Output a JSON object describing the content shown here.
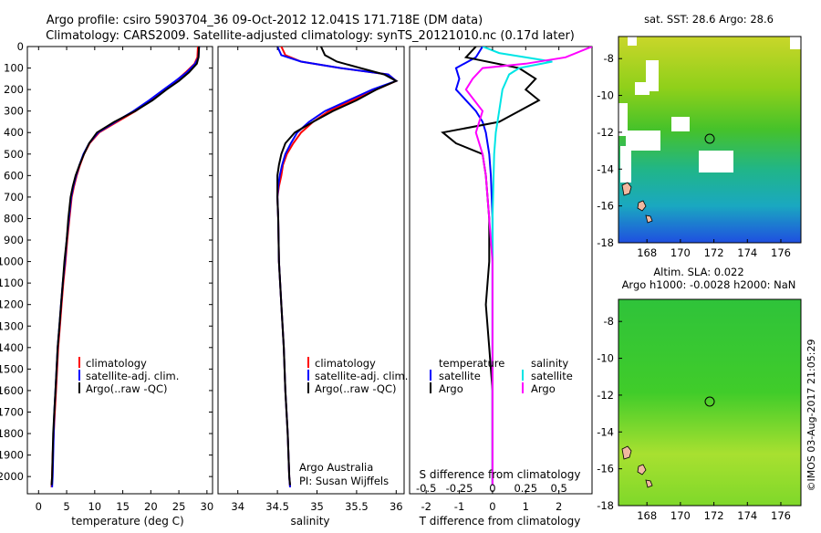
{
  "header": {
    "title_line1": "Argo profile: csiro 5903704_36 09-Oct-2012 12.041S 171.718E (DM data)",
    "title_line2": "Climatology: CARS2009. Satellite-adjusted climatology: synTS_20121010.nc (0.17d later)"
  },
  "colors": {
    "climatology": "#ff0000",
    "satellite": "#0000ff",
    "argo": "#000000",
    "sat_salinity": "#00e5e5",
    "argo_salinity": "#ff00ff"
  },
  "depth_ticks": [
    0,
    100,
    200,
    300,
    400,
    500,
    600,
    700,
    800,
    900,
    1000,
    1100,
    1200,
    1300,
    1400,
    1500,
    1600,
    1700,
    1800,
    1900,
    2000
  ],
  "chart_data": [
    {
      "type": "line",
      "panel": "temperature",
      "xlabel": "temperature (deg C)",
      "ylabel": "",
      "xlim": [
        -2,
        31
      ],
      "ylim": [
        2080,
        0
      ],
      "x_ticks": [
        "0",
        "5",
        "10",
        "15",
        "20",
        "25",
        "30"
      ],
      "legend": [
        "climatology",
        "satellite-adj. clim.",
        "Argo(..raw -QC)"
      ],
      "series": [
        {
          "name": "climatology",
          "color": "#ff0000",
          "points": [
            [
              28.4,
              0
            ],
            [
              28.3,
              50
            ],
            [
              27.8,
              80
            ],
            [
              26.2,
              120
            ],
            [
              24.5,
              160
            ],
            [
              22.5,
              200
            ],
            [
              20,
              250
            ],
            [
              17.3,
              300
            ],
            [
              14,
              350
            ],
            [
              10.8,
              400
            ],
            [
              9.1,
              450
            ],
            [
              8.1,
              500
            ],
            [
              7.4,
              550
            ],
            [
              6.8,
              600
            ],
            [
              6.3,
              650
            ],
            [
              5.9,
              700
            ],
            [
              5.5,
              800
            ],
            [
              5.1,
              900
            ],
            [
              4.8,
              1000
            ],
            [
              4.4,
              1100
            ],
            [
              4.1,
              1200
            ],
            [
              3.8,
              1300
            ],
            [
              3.5,
              1400
            ],
            [
              3.3,
              1500
            ],
            [
              3.1,
              1600
            ],
            [
              2.9,
              1700
            ],
            [
              2.7,
              1800
            ],
            [
              2.5,
              1900
            ],
            [
              2.4,
              2000
            ],
            [
              2.3,
              2050
            ]
          ]
        },
        {
          "name": "satellite-adj. clim.",
          "color": "#0000ff",
          "points": [
            [
              28.6,
              0
            ],
            [
              28.5,
              50
            ],
            [
              27.9,
              80
            ],
            [
              26.4,
              120
            ],
            [
              24.4,
              160
            ],
            [
              22.3,
              200
            ],
            [
              19.7,
              250
            ],
            [
              16.9,
              300
            ],
            [
              13.7,
              350
            ],
            [
              10.6,
              400
            ],
            [
              9,
              450
            ],
            [
              8,
              500
            ],
            [
              7.3,
              550
            ],
            [
              6.7,
              600
            ],
            [
              6.2,
              650
            ],
            [
              5.8,
              700
            ],
            [
              5.4,
              800
            ],
            [
              5,
              900
            ],
            [
              4.7,
              1000
            ],
            [
              4.3,
              1100
            ],
            [
              4,
              1200
            ],
            [
              3.7,
              1300
            ],
            [
              3.4,
              1400
            ],
            [
              3.2,
              1500
            ],
            [
              3,
              1600
            ],
            [
              2.8,
              1700
            ],
            [
              2.7,
              1800
            ],
            [
              2.6,
              1900
            ],
            [
              2.5,
              2000
            ],
            [
              2.4,
              2050
            ]
          ]
        },
        {
          "name": "Argo(..raw -QC)",
          "color": "#000000",
          "points": [
            [
              28.6,
              0
            ],
            [
              28.5,
              50
            ],
            [
              28.2,
              80
            ],
            [
              26.8,
              120
            ],
            [
              25,
              160
            ],
            [
              22.8,
              200
            ],
            [
              20.3,
              250
            ],
            [
              17.2,
              300
            ],
            [
              13.5,
              350
            ],
            [
              10.4,
              400
            ],
            [
              9,
              450
            ],
            [
              8.1,
              500
            ],
            [
              7.3,
              550
            ],
            [
              6.6,
              600
            ],
            [
              6.1,
              650
            ],
            [
              5.7,
              700
            ],
            [
              5.3,
              800
            ],
            [
              5,
              900
            ],
            [
              4.6,
              1000
            ],
            [
              4.3,
              1100
            ],
            [
              4,
              1200
            ],
            [
              3.7,
              1300
            ],
            [
              3.4,
              1400
            ],
            [
              3.2,
              1500
            ],
            [
              3,
              1600
            ],
            [
              2.8,
              1700
            ],
            [
              2.6,
              1800
            ],
            [
              2.5,
              1900
            ],
            [
              2.4,
              2000
            ],
            [
              2.3,
              2040
            ]
          ]
        }
      ]
    },
    {
      "type": "line",
      "panel": "salinity",
      "xlabel": "salinity",
      "ylabel": "",
      "xlim": [
        33.75,
        36.1
      ],
      "ylim": [
        2080,
        0
      ],
      "x_ticks": [
        "34",
        "34.5",
        "35",
        "35.5",
        "36"
      ],
      "legend": [
        "climatology",
        "satellite-adj. clim.",
        "Argo(..raw -QC)"
      ],
      "annotation": [
        "Argo Australia",
        "PI: Susan Wijffels"
      ],
      "series": [
        {
          "name": "climatology",
          "color": "#ff0000",
          "points": [
            [
              34.55,
              0
            ],
            [
              34.6,
              40
            ],
            [
              34.8,
              70
            ],
            [
              35.3,
              100
            ],
            [
              35.9,
              130
            ],
            [
              36.0,
              160
            ],
            [
              35.75,
              200
            ],
            [
              35.45,
              250
            ],
            [
              35.15,
              300
            ],
            [
              34.95,
              350
            ],
            [
              34.8,
              400
            ],
            [
              34.7,
              450
            ],
            [
              34.62,
              500
            ],
            [
              34.57,
              550
            ],
            [
              34.55,
              600
            ],
            [
              34.52,
              650
            ],
            [
              34.5,
              700
            ],
            [
              34.51,
              800
            ],
            [
              34.52,
              1000
            ],
            [
              34.55,
              1200
            ],
            [
              34.58,
              1400
            ],
            [
              34.6,
              1600
            ],
            [
              34.63,
              1800
            ],
            [
              34.65,
              2000
            ],
            [
              34.66,
              2050
            ]
          ]
        },
        {
          "name": "satellite-adj. clim.",
          "color": "#0000ff",
          "points": [
            [
              34.5,
              0
            ],
            [
              34.55,
              40
            ],
            [
              34.8,
              70
            ],
            [
              35.3,
              100
            ],
            [
              35.9,
              130
            ],
            [
              36.0,
              160
            ],
            [
              35.7,
              200
            ],
            [
              35.4,
              250
            ],
            [
              35.1,
              300
            ],
            [
              34.9,
              350
            ],
            [
              34.75,
              400
            ],
            [
              34.67,
              450
            ],
            [
              34.6,
              500
            ],
            [
              34.56,
              550
            ],
            [
              34.53,
              600
            ],
            [
              34.51,
              650
            ],
            [
              34.5,
              700
            ],
            [
              34.51,
              800
            ],
            [
              34.52,
              1000
            ],
            [
              34.55,
              1200
            ],
            [
              34.58,
              1400
            ],
            [
              34.6,
              1600
            ],
            [
              34.63,
              1800
            ],
            [
              34.65,
              2000
            ],
            [
              34.66,
              2050
            ]
          ]
        },
        {
          "name": "Argo(..raw -QC)",
          "color": "#000000",
          "points": [
            [
              35.05,
              0
            ],
            [
              35.1,
              40
            ],
            [
              35.25,
              70
            ],
            [
              35.55,
              100
            ],
            [
              35.85,
              130
            ],
            [
              36.0,
              160
            ],
            [
              35.75,
              200
            ],
            [
              35.5,
              250
            ],
            [
              35.2,
              300
            ],
            [
              34.95,
              350
            ],
            [
              34.72,
              400
            ],
            [
              34.6,
              450
            ],
            [
              34.55,
              500
            ],
            [
              34.52,
              550
            ],
            [
              34.5,
              600
            ],
            [
              34.5,
              650
            ],
            [
              34.5,
              700
            ],
            [
              34.51,
              800
            ],
            [
              34.52,
              1000
            ],
            [
              34.55,
              1200
            ],
            [
              34.58,
              1400
            ],
            [
              34.6,
              1600
            ],
            [
              34.63,
              1800
            ],
            [
              34.65,
              2000
            ],
            [
              34.66,
              2040
            ]
          ]
        }
      ]
    },
    {
      "type": "line",
      "panel": "difference",
      "xlabel": "T difference from climatology",
      "top_label": "S difference from climatology",
      "xlim": [
        -2.5,
        3.0
      ],
      "ylim": [
        2080,
        0
      ],
      "x_ticks": [
        "-2",
        "-1",
        "0",
        "1",
        "2"
      ],
      "s_ticks": [
        "-0.5",
        "-0.25",
        "0",
        "0.25",
        "0.5"
      ],
      "legend": {
        "temperature": "temperature",
        "salinity": "salinity",
        "satellite": "satellite",
        "argo": "Argo"
      },
      "series": [
        {
          "name": "temperature satellite",
          "color": "#0000ff",
          "points": [
            [
              -0.3,
              0
            ],
            [
              -0.5,
              50
            ],
            [
              -1.1,
              100
            ],
            [
              -1.0,
              150
            ],
            [
              -1.1,
              200
            ],
            [
              -0.8,
              250
            ],
            [
              -0.5,
              300
            ],
            [
              -0.3,
              350
            ],
            [
              -0.2,
              400
            ],
            [
              -0.1,
              500
            ],
            [
              -0.05,
              600
            ],
            [
              0,
              800
            ],
            [
              0,
              1200
            ],
            [
              0,
              1600
            ],
            [
              0,
              2040
            ]
          ]
        },
        {
          "name": "temperature Argo",
          "color": "#000000",
          "points": [
            [
              -0.5,
              0
            ],
            [
              -0.8,
              50
            ],
            [
              0.8,
              100
            ],
            [
              1.3,
              150
            ],
            [
              1.0,
              200
            ],
            [
              1.4,
              250
            ],
            [
              0.8,
              300
            ],
            [
              0.2,
              350
            ],
            [
              -1.5,
              400
            ],
            [
              -1.1,
              450
            ],
            [
              -0.3,
              500
            ],
            [
              -0.2,
              600
            ],
            [
              -0.1,
              800
            ],
            [
              -0.1,
              1000
            ],
            [
              -0.2,
              1200
            ],
            [
              -0.1,
              1400
            ],
            [
              0,
              1600
            ],
            [
              0,
              2040
            ]
          ]
        },
        {
          "name": "salinity satellite",
          "color": "#00e5e5",
          "points": [
            [
              -0.3,
              0
            ],
            [
              0.2,
              30
            ],
            [
              1.8,
              70
            ],
            [
              0.8,
              100
            ],
            [
              0.5,
              130
            ],
            [
              0.3,
              200
            ],
            [
              0.2,
              300
            ],
            [
              0.1,
              400
            ],
            [
              0.05,
              500
            ],
            [
              0,
              800
            ],
            [
              0,
              1200
            ],
            [
              0,
              1600
            ],
            [
              0,
              2040
            ]
          ]
        },
        {
          "name": "salinity Argo",
          "color": "#ff00ff",
          "points": [
            [
              3.0,
              0
            ],
            [
              2.2,
              50
            ],
            [
              1.0,
              80
            ],
            [
              -0.3,
              100
            ],
            [
              -0.6,
              150
            ],
            [
              -0.8,
              200
            ],
            [
              -0.3,
              300
            ],
            [
              -0.5,
              400
            ],
            [
              -0.3,
              500
            ],
            [
              -0.2,
              600
            ],
            [
              -0.1,
              800
            ],
            [
              0,
              1000
            ],
            [
              0,
              1200
            ],
            [
              0,
              1600
            ],
            [
              0,
              2040
            ]
          ]
        }
      ]
    }
  ],
  "maps": {
    "sst": {
      "title": "sat. SST: 28.6  Argo: 28.6",
      "lat_ticks": [
        "-8",
        "-10",
        "-12",
        "-14",
        "-16",
        "-18"
      ],
      "lon_ticks": [
        "168",
        "170",
        "172",
        "174",
        "176"
      ]
    },
    "sla": {
      "title_line1": "Altim. SLA: 0.022",
      "title_line2": "Argo h1000: -0.0028 h2000: NaN",
      "lat_ticks": [
        "-8",
        "-10",
        "-12",
        "-14",
        "-16",
        "-18"
      ],
      "lon_ticks": [
        "168",
        "170",
        "172",
        "174",
        "176"
      ]
    }
  },
  "footer": {
    "credit": "©IMOS 03-Aug-2017 21:05:29"
  }
}
